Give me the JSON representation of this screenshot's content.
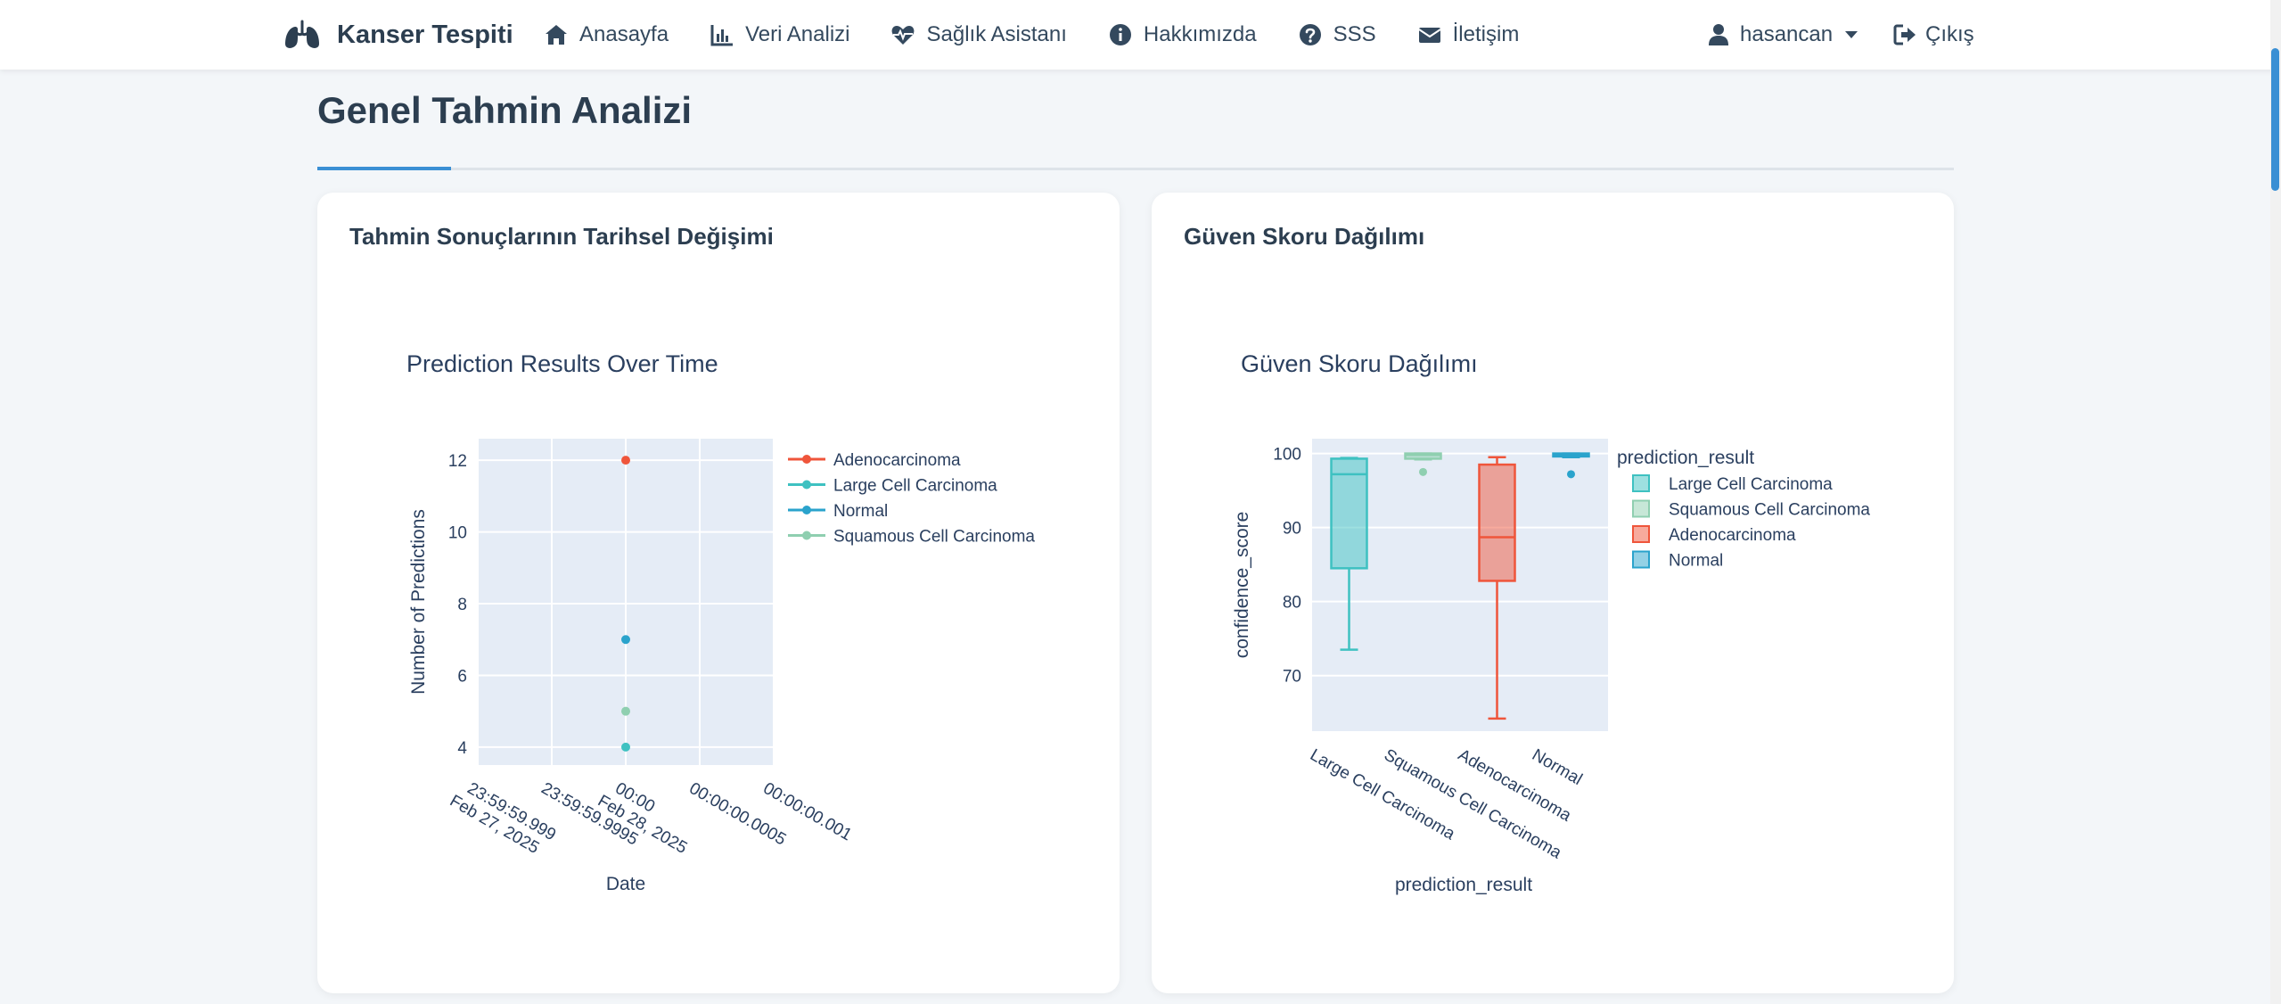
{
  "navbar": {
    "brand": "Kanser Tespiti",
    "items": [
      {
        "label": "Anasayfa",
        "icon": "home-icon"
      },
      {
        "label": "Veri Analizi",
        "icon": "chart-icon"
      },
      {
        "label": "Sağlık Asistanı",
        "icon": "heart-pulse-icon"
      },
      {
        "label": "Hakkımızda",
        "icon": "info-icon"
      },
      {
        "label": "SSS",
        "icon": "question-icon"
      },
      {
        "label": "İletişim",
        "icon": "envelope-icon"
      }
    ],
    "user": "hasancan",
    "logout": "Çıkış"
  },
  "page": {
    "title": "Genel Tahmin Analizi"
  },
  "cards": {
    "left_title": "Tahmin Sonuçlarının Tarihsel Değişimi",
    "right_title": "Güven Skoru Dağılımı"
  },
  "chart_data": [
    {
      "type": "scatter",
      "title": "Prediction Results Over Time",
      "xlabel": "Date",
      "ylabel": "Number of Predictions",
      "x_tick_labels": [
        [
          "23:59:59.999",
          "Feb 27, 2025"
        ],
        [
          "23:59:59.9995"
        ],
        [
          "00:00",
          "Feb 28, 2025"
        ],
        [
          "00:00:00.0005"
        ],
        [
          "00:00:00.001"
        ]
      ],
      "y_ticks": [
        4,
        6,
        8,
        10,
        12
      ],
      "ylim": [
        3.5,
        12.6
      ],
      "series": [
        {
          "name": "Adenocarcinoma",
          "color": "#ef553b",
          "x": [
            "2025-02-28 00:00"
          ],
          "y": [
            12
          ]
        },
        {
          "name": "Large Cell Carcinoma",
          "color": "#3ec1c1",
          "x": [
            "2025-02-28 00:00"
          ],
          "y": [
            4
          ]
        },
        {
          "name": "Normal",
          "color": "#2aa3cc",
          "x": [
            "2025-02-28 00:00"
          ],
          "y": [
            7
          ]
        },
        {
          "name": "Squamous Cell Carcinoma",
          "color": "#8fcfb0",
          "x": [
            "2025-02-28 00:00"
          ],
          "y": [
            5
          ]
        }
      ],
      "legend": "right",
      "grid": true
    },
    {
      "type": "box",
      "title": "Güven Skoru Dağılımı",
      "xlabel": "prediction_result",
      "ylabel": "confidence_score",
      "legend_title": "prediction_result",
      "categories": [
        "Large Cell Carcinoma",
        "Squamous Cell Carcinoma",
        "Adenocarcinoma",
        "Normal"
      ],
      "y_ticks": [
        70,
        80,
        90,
        100
      ],
      "ylim": [
        62.5,
        102
      ],
      "series": [
        {
          "name": "Large Cell Carcinoma",
          "color": "#3ec1c1",
          "min": 73.5,
          "q1": 84.5,
          "median": 97.2,
          "q3": 99.3,
          "max": 99.4,
          "outliers": []
        },
        {
          "name": "Squamous Cell Carcinoma",
          "color": "#8fcfb0",
          "min": 99.2,
          "q1": 99.3,
          "median": 99.8,
          "q3": 100,
          "max": 100,
          "outliers": [
            97.5
          ]
        },
        {
          "name": "Adenocarcinoma",
          "color": "#ef553b",
          "min": 64.2,
          "q1": 82.8,
          "median": 88.7,
          "q3": 98.5,
          "max": 99.5,
          "outliers": []
        },
        {
          "name": "Normal",
          "color": "#2aa3cc",
          "min": 99.5,
          "q1": 99.6,
          "median": 99.8,
          "q3": 100,
          "max": 100,
          "outliers": [
            97.2
          ]
        }
      ],
      "legend": "right",
      "grid": true
    }
  ]
}
